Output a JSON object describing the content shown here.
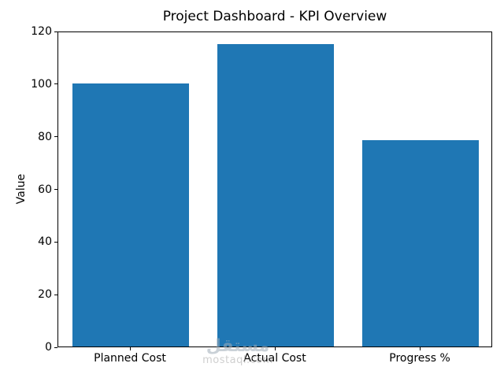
{
  "chart_data": {
    "type": "bar",
    "title": "Project Dashboard - KPI Overview",
    "categories": [
      "Planned Cost",
      "Actual Cost",
      "Progress %"
    ],
    "values": [
      100,
      115,
      78.5
    ],
    "xlabel": "",
    "ylabel": "Value",
    "ylim": [
      0,
      120
    ],
    "yticks": [
      0,
      20,
      40,
      60,
      80,
      100,
      120
    ],
    "bar_color": "#1f77b4",
    "bar_width_fraction": 0.8,
    "grid": false,
    "legend": false,
    "axis_color": "#000000",
    "background_color": "#ffffff"
  },
  "watermark": {
    "logo_text": "مستقل",
    "site_text": "mostaql.com"
  }
}
